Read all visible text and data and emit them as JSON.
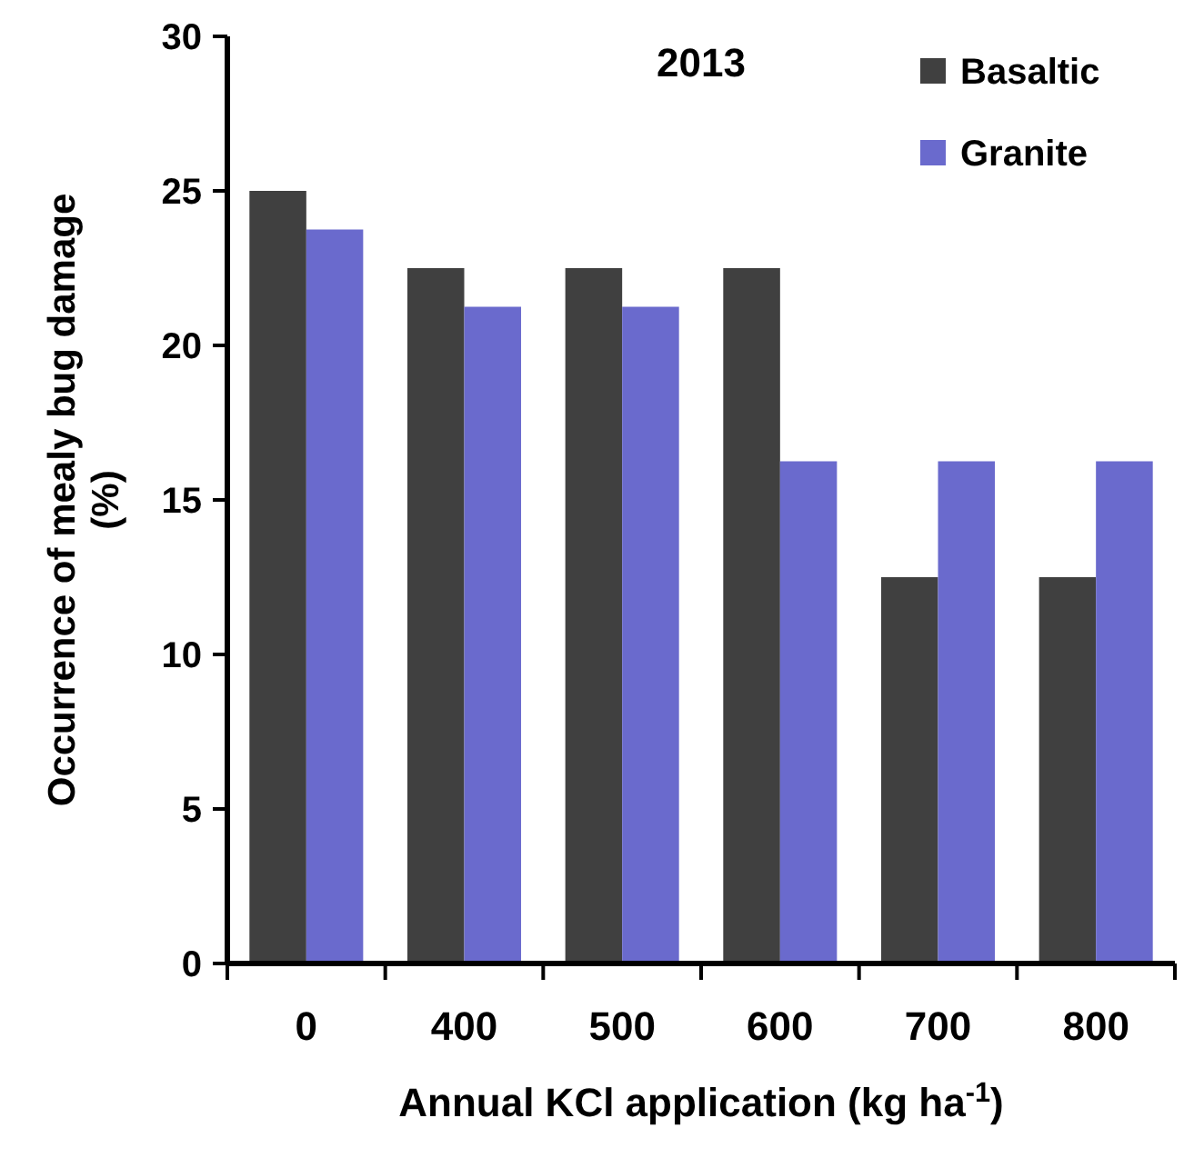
{
  "chart_data": {
    "type": "bar",
    "title": "2013",
    "xlabel": "Annual KCl application (kg ha$^{-1}$)",
    "ylabel": "Occurrence of mealy bug damage (%)",
    "categories": [
      "0",
      "400",
      "500",
      "600",
      "700",
      "800"
    ],
    "series": [
      {
        "name": "Basaltic",
        "color": "#404040",
        "values": [
          25,
          22.5,
          22.5,
          22.5,
          12.5,
          12.5
        ]
      },
      {
        "name": "Granite",
        "color": "#6a6acd",
        "values": [
          23.75,
          21.25,
          21.25,
          16.25,
          16.25,
          16.25
        ]
      }
    ],
    "ylim": [
      0,
      30
    ],
    "yticks": [
      0,
      5,
      10,
      15,
      20,
      25,
      30
    ],
    "grid": false,
    "legend": "top right"
  }
}
